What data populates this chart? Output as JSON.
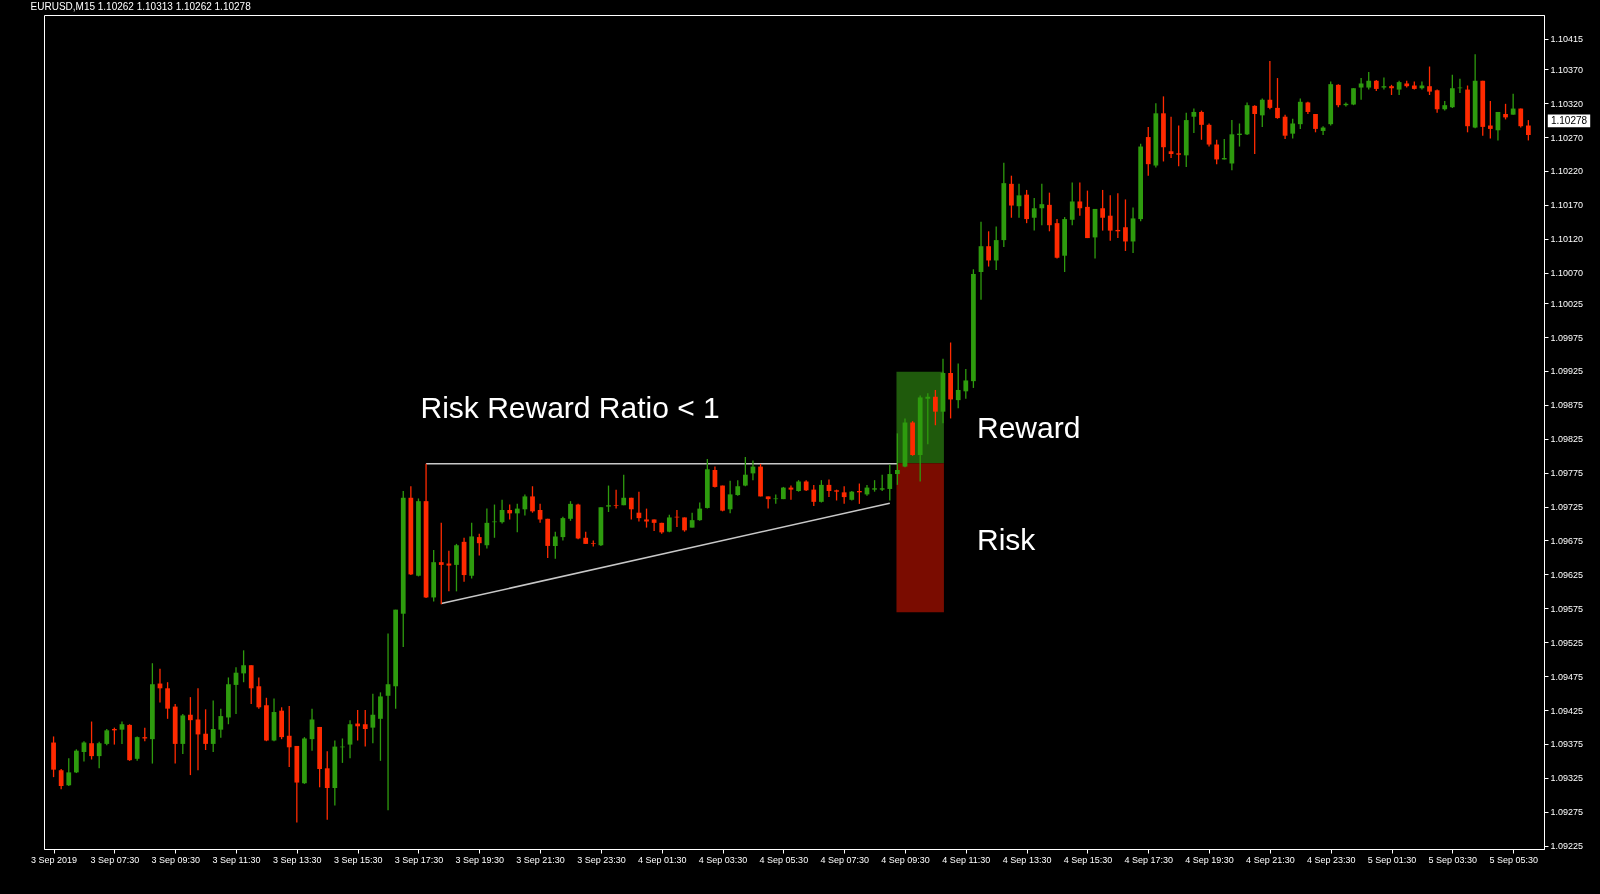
{
  "chart_data": {
    "type": "candlestick",
    "title": "EURUSD,M15  1.10262 1.10313 1.10262 1.10278",
    "x": [
      "2019-09-03T05:30",
      "2019-09-03T05:45",
      "2019-09-03T06:00",
      "2019-09-03T06:15",
      "2019-09-03T06:30",
      "2019-09-03T06:45",
      "2019-09-03T07:00",
      "2019-09-03T07:15",
      "2019-09-03T07:30",
      "2019-09-03T07:45",
      "2019-09-03T08:00",
      "2019-09-03T08:15",
      "2019-09-03T08:30",
      "2019-09-03T08:45",
      "2019-09-03T09:00",
      "2019-09-03T09:15",
      "2019-09-03T09:30",
      "2019-09-03T09:45",
      "2019-09-03T10:00",
      "2019-09-03T10:15",
      "2019-09-03T10:30",
      "2019-09-03T10:45",
      "2019-09-03T11:00",
      "2019-09-03T11:15",
      "2019-09-03T11:30",
      "2019-09-03T11:45",
      "2019-09-03T12:00",
      "2019-09-03T12:15",
      "2019-09-03T12:30",
      "2019-09-03T12:45",
      "2019-09-03T13:00",
      "2019-09-03T13:15",
      "2019-09-03T13:30",
      "2019-09-03T13:45",
      "2019-09-03T14:00",
      "2019-09-03T14:15",
      "2019-09-03T14:30",
      "2019-09-03T14:45",
      "2019-09-03T15:00",
      "2019-09-03T15:15",
      "2019-09-03T15:30",
      "2019-09-03T15:45",
      "2019-09-03T16:00",
      "2019-09-03T16:15",
      "2019-09-03T16:30",
      "2019-09-03T16:45",
      "2019-09-03T17:00",
      "2019-09-03T17:15",
      "2019-09-03T17:30",
      "2019-09-03T17:45",
      "2019-09-03T18:00",
      "2019-09-03T18:15",
      "2019-09-03T18:30",
      "2019-09-03T18:45",
      "2019-09-03T19:00",
      "2019-09-03T19:15",
      "2019-09-03T19:30",
      "2019-09-03T19:45",
      "2019-09-03T20:00",
      "2019-09-03T20:15",
      "2019-09-03T20:30",
      "2019-09-03T20:45",
      "2019-09-03T21:00",
      "2019-09-03T21:15",
      "2019-09-03T21:30",
      "2019-09-03T21:45",
      "2019-09-03T22:00",
      "2019-09-03T22:15",
      "2019-09-03T22:30",
      "2019-09-03T22:45",
      "2019-09-03T23:00",
      "2019-09-03T23:15",
      "2019-09-03T23:30",
      "2019-09-03T23:45",
      "2019-09-04T00:00",
      "2019-09-04T00:15",
      "2019-09-04T00:30",
      "2019-09-04T00:45",
      "2019-09-04T01:00",
      "2019-09-04T01:15",
      "2019-09-04T01:30",
      "2019-09-04T01:45",
      "2019-09-04T02:00",
      "2019-09-04T02:15",
      "2019-09-04T02:30",
      "2019-09-04T02:45",
      "2019-09-04T03:00",
      "2019-09-04T03:15",
      "2019-09-04T03:30",
      "2019-09-04T03:45",
      "2019-09-04T04:00",
      "2019-09-04T04:15",
      "2019-09-04T04:30",
      "2019-09-04T04:45",
      "2019-09-04T05:00",
      "2019-09-04T05:15",
      "2019-09-04T05:30",
      "2019-09-04T05:45",
      "2019-09-04T06:00",
      "2019-09-04T06:15",
      "2019-09-04T06:30",
      "2019-09-04T06:45",
      "2019-09-04T07:00",
      "2019-09-04T07:15",
      "2019-09-04T07:30",
      "2019-09-04T07:45",
      "2019-09-04T08:00",
      "2019-09-04T08:15",
      "2019-09-04T08:30",
      "2019-09-04T08:45",
      "2019-09-04T09:00",
      "2019-09-04T09:15",
      "2019-09-04T09:30",
      "2019-09-04T09:45",
      "2019-09-04T10:00",
      "2019-09-04T10:15",
      "2019-09-04T10:30",
      "2019-09-04T10:45",
      "2019-09-04T11:00",
      "2019-09-04T11:15",
      "2019-09-04T11:30",
      "2019-09-04T11:45",
      "2019-09-04T12:00",
      "2019-09-04T12:15",
      "2019-09-04T12:30",
      "2019-09-04T12:45",
      "2019-09-04T13:00",
      "2019-09-04T13:15",
      "2019-09-04T13:30",
      "2019-09-04T13:45",
      "2019-09-04T14:00",
      "2019-09-04T14:15",
      "2019-09-04T14:30",
      "2019-09-04T14:45",
      "2019-09-04T15:00",
      "2019-09-04T15:15",
      "2019-09-04T15:30",
      "2019-09-04T15:45",
      "2019-09-04T16:00",
      "2019-09-04T16:15",
      "2019-09-04T16:30",
      "2019-09-04T16:45",
      "2019-09-04T17:00",
      "2019-09-04T17:15",
      "2019-09-04T17:30",
      "2019-09-04T17:45",
      "2019-09-04T18:00",
      "2019-09-04T18:15",
      "2019-09-04T18:30",
      "2019-09-04T18:45",
      "2019-09-04T19:00",
      "2019-09-04T19:15",
      "2019-09-04T19:30",
      "2019-09-04T19:45",
      "2019-09-04T20:00",
      "2019-09-04T20:15",
      "2019-09-04T20:30",
      "2019-09-04T20:45",
      "2019-09-04T21:00",
      "2019-09-04T21:15",
      "2019-09-04T21:30",
      "2019-09-04T21:45",
      "2019-09-04T22:00",
      "2019-09-04T22:15",
      "2019-09-04T22:30",
      "2019-09-04T22:45",
      "2019-09-04T23:00",
      "2019-09-04T23:15",
      "2019-09-04T23:30",
      "2019-09-04T23:45",
      "2019-09-05T00:00",
      "2019-09-05T00:15",
      "2019-09-05T00:30",
      "2019-09-05T00:45",
      "2019-09-05T01:00",
      "2019-09-05T01:15",
      "2019-09-05T01:30",
      "2019-09-05T01:45",
      "2019-09-05T02:00",
      "2019-09-05T02:15",
      "2019-09-05T02:30",
      "2019-09-05T02:45",
      "2019-09-05T03:00",
      "2019-09-05T03:15",
      "2019-09-05T03:30",
      "2019-09-05T03:45",
      "2019-09-05T04:00",
      "2019-09-05T04:15",
      "2019-09-05T04:30",
      "2019-09-05T04:45",
      "2019-09-05T05:00",
      "2019-09-05T05:15",
      "2019-09-05T05:30",
      "2019-09-05T05:45",
      "2019-09-05T06:00"
    ],
    "ohlc": [
      [
        1.09377,
        1.09386,
        1.09326,
        1.09337
      ],
      [
        1.09336,
        1.09338,
        1.09308,
        1.09313
      ],
      [
        1.09314,
        1.09354,
        1.09313,
        1.09333
      ],
      [
        1.09333,
        1.09367,
        1.09332,
        1.09365
      ],
      [
        1.09363,
        1.09379,
        1.09349,
        1.09377
      ],
      [
        1.09376,
        1.09408,
        1.09352,
        1.09357
      ],
      [
        1.09357,
        1.09378,
        1.09339,
        1.09376
      ],
      [
        1.09375,
        1.09397,
        1.09373,
        1.09395
      ],
      [
        1.09397,
        1.09399,
        1.09374,
        1.09395
      ],
      [
        1.09396,
        1.09408,
        1.09375,
        1.09404
      ],
      [
        1.09403,
        1.09404,
        1.0935,
        1.09351
      ],
      [
        1.09353,
        1.09386,
        1.0935,
        1.09385
      ],
      [
        1.09385,
        1.09399,
        1.09379,
        1.09383
      ],
      [
        1.09382,
        1.09494,
        1.09346,
        1.09463
      ],
      [
        1.09464,
        1.09486,
        1.09436,
        1.09457
      ],
      [
        1.09457,
        1.09466,
        1.09412,
        1.09427
      ],
      [
        1.0943,
        1.09434,
        1.09346,
        1.09375
      ],
      [
        1.09375,
        1.09419,
        1.0936,
        1.09417
      ],
      [
        1.09418,
        1.09444,
        1.09329,
        1.0941
      ],
      [
        1.09411,
        1.09457,
        1.09336,
        1.09389
      ],
      [
        1.0939,
        1.09426,
        1.09366,
        1.09375
      ],
      [
        1.09375,
        1.09439,
        1.09363,
        1.09397
      ],
      [
        1.09396,
        1.09427,
        1.09384,
        1.09416
      ],
      [
        1.09414,
        1.09473,
        1.09404,
        1.09463
      ],
      [
        1.09462,
        1.09488,
        1.09419,
        1.0948
      ],
      [
        1.09479,
        1.09513,
        1.09466,
        1.09491
      ],
      [
        1.09491,
        1.09491,
        1.09434,
        1.09457
      ],
      [
        1.0946,
        1.09473,
        1.09427,
        1.09429
      ],
      [
        1.09432,
        1.09443,
        1.09379,
        1.0938
      ],
      [
        1.0938,
        1.09442,
        1.09379,
        1.09422
      ],
      [
        1.09424,
        1.09429,
        1.09382,
        1.09385
      ],
      [
        1.09387,
        1.09431,
        1.09341,
        1.0937
      ],
      [
        1.09372,
        1.09372,
        1.09259,
        1.09318
      ],
      [
        1.09317,
        1.09385,
        1.09316,
        1.09383
      ],
      [
        1.09382,
        1.09427,
        1.09365,
        1.09411
      ],
      [
        1.094,
        1.094,
        1.09311,
        1.09338
      ],
      [
        1.09339,
        1.09364,
        1.09263,
        1.0931
      ],
      [
        1.0931,
        1.0938,
        1.09284,
        1.09371
      ],
      [
        1.0937,
        1.09383,
        1.09347,
        1.09371
      ],
      [
        1.09374,
        1.0941,
        1.09354,
        1.09404
      ],
      [
        1.09405,
        1.09425,
        1.0938,
        1.09401
      ],
      [
        1.09404,
        1.09425,
        1.09371,
        1.09397
      ],
      [
        1.09399,
        1.09449,
        1.09376,
        1.09418
      ],
      [
        1.09412,
        1.09451,
        1.0935,
        1.09445
      ],
      [
        1.09446,
        1.09538,
        1.09277,
        1.09463
      ],
      [
        1.0946,
        1.09573,
        1.09427,
        1.09573
      ],
      [
        1.09567,
        1.09748,
        1.09518,
        1.09738
      ],
      [
        1.09738,
        1.09755,
        1.09624,
        1.09625
      ],
      [
        1.09623,
        1.09737,
        1.09622,
        1.09733
      ],
      [
        1.09733,
        1.09788,
        1.0959,
        1.09591
      ],
      [
        1.09591,
        1.09661,
        1.09585,
        1.09643
      ],
      [
        1.09643,
        1.09701,
        1.09581,
        1.09639
      ],
      [
        1.09641,
        1.0966,
        1.096,
        1.09638
      ],
      [
        1.09639,
        1.0967,
        1.096,
        1.09668
      ],
      [
        1.09673,
        1.09679,
        1.09614,
        1.09624
      ],
      [
        1.09623,
        1.09701,
        1.09619,
        1.09681
      ],
      [
        1.0968,
        1.09685,
        1.09653,
        1.09671
      ],
      [
        1.09668,
        1.09722,
        1.09663,
        1.09701
      ],
      [
        1.09702,
        1.09728,
        1.09679,
        1.09703
      ],
      [
        1.09702,
        1.09735,
        1.097,
        1.0972
      ],
      [
        1.0972,
        1.09728,
        1.09706,
        1.09715
      ],
      [
        1.09715,
        1.09729,
        1.09687,
        1.09722
      ],
      [
        1.09721,
        1.09743,
        1.09712,
        1.0974
      ],
      [
        1.0974,
        1.09755,
        1.09716,
        1.09718
      ],
      [
        1.0972,
        1.09729,
        1.09701,
        1.09706
      ],
      [
        1.09707,
        1.09707,
        1.09649,
        1.09667
      ],
      [
        1.09667,
        1.09688,
        1.09648,
        1.09681
      ],
      [
        1.0968,
        1.0971,
        1.09675,
        1.09708
      ],
      [
        1.09707,
        1.09733,
        1.09704,
        1.09729
      ],
      [
        1.09728,
        1.09729,
        1.09677,
        1.09678
      ],
      [
        1.09679,
        1.09688,
        1.0967,
        1.0967
      ],
      [
        1.09671,
        1.09675,
        1.09666,
        1.0967
      ],
      [
        1.09668,
        1.09724,
        1.09667,
        1.09724
      ],
      [
        1.09725,
        1.09756,
        1.09717,
        1.09727
      ],
      [
        1.09727,
        1.0975,
        1.09722,
        1.09726
      ],
      [
        1.09727,
        1.09772,
        1.09727,
        1.09738
      ],
      [
        1.09738,
        1.09738,
        1.09706,
        1.09721
      ],
      [
        1.09716,
        1.09747,
        1.09703,
        1.09708
      ],
      [
        1.09706,
        1.09722,
        1.09694,
        1.09703
      ],
      [
        1.09706,
        1.09706,
        1.09689,
        1.09701
      ],
      [
        1.09701,
        1.09701,
        1.09685,
        1.09687
      ],
      [
        1.09688,
        1.09713,
        1.09687,
        1.09709
      ],
      [
        1.0971,
        1.0972,
        1.09695,
        1.09709
      ],
      [
        1.09709,
        1.09709,
        1.09688,
        1.0969
      ],
      [
        1.09694,
        1.09716,
        1.09694,
        1.09705
      ],
      [
        1.09705,
        1.09731,
        1.09704,
        1.09722
      ],
      [
        1.09723,
        1.09795,
        1.09722,
        1.0978
      ],
      [
        1.09779,
        1.09784,
        1.09753,
        1.09754
      ],
      [
        1.09756,
        1.09756,
        1.09718,
        1.09719
      ],
      [
        1.09721,
        1.09763,
        1.09715,
        1.09743
      ],
      [
        1.09742,
        1.09764,
        1.09741,
        1.09755
      ],
      [
        1.09756,
        1.09798,
        1.09755,
        1.09772
      ],
      [
        1.09774,
        1.09793,
        1.09764,
        1.09784
      ],
      [
        1.09784,
        1.09788,
        1.0974,
        1.0974
      ],
      [
        1.0974,
        1.0974,
        1.09722,
        1.09736
      ],
      [
        1.09736,
        1.09743,
        1.09729,
        1.09737
      ],
      [
        1.09736,
        1.09754,
        1.09736,
        1.09753
      ],
      [
        1.09753,
        1.09756,
        1.09735,
        1.0975
      ],
      [
        1.09748,
        1.09764,
        1.09747,
        1.09762
      ],
      [
        1.09762,
        1.09764,
        1.09748,
        1.09749
      ],
      [
        1.0975,
        1.09757,
        1.09726,
        1.09732
      ],
      [
        1.09732,
        1.09764,
        1.09731,
        1.09757
      ],
      [
        1.09757,
        1.09765,
        1.09739,
        1.09748
      ],
      [
        1.09749,
        1.0975,
        1.09734,
        1.09747
      ],
      [
        1.09746,
        1.09755,
        1.09729,
        1.09739
      ],
      [
        1.09735,
        1.09748,
        1.09734,
        1.09747
      ],
      [
        1.09748,
        1.09759,
        1.09729,
        1.09746
      ],
      [
        1.09743,
        1.09757,
        1.09741,
        1.09753
      ],
      [
        1.0975,
        1.09764,
        1.09747,
        1.09752
      ],
      [
        1.0975,
        1.09772,
        1.09748,
        1.09752
      ],
      [
        1.09751,
        1.09787,
        1.09734,
        1.09773
      ],
      [
        1.09773,
        1.09833,
        1.09757,
        1.09779
      ],
      [
        1.09784,
        1.09855,
        1.09783,
        1.09849
      ],
      [
        1.09849,
        1.09851,
        1.098,
        1.09801
      ],
      [
        1.09801,
        1.09889,
        1.09762,
        1.09886
      ],
      [
        1.09884,
        1.09892,
        1.09817,
        1.09887
      ],
      [
        1.09887,
        1.09897,
        1.09845,
        1.09865
      ],
      [
        1.09865,
        1.09943,
        1.09848,
        1.09922
      ],
      [
        1.09922,
        1.09967,
        1.09855,
        1.09883
      ],
      [
        1.09882,
        1.09936,
        1.0987,
        1.09897
      ],
      [
        1.09895,
        1.09928,
        1.09884,
        1.09911
      ],
      [
        1.0991,
        1.10075,
        1.099,
        1.10068
      ],
      [
        1.10071,
        1.10145,
        1.1003,
        1.10109
      ],
      [
        1.10109,
        1.10131,
        1.10079,
        1.10088
      ],
      [
        1.10088,
        1.10138,
        1.10074,
        1.10118
      ],
      [
        1.10118,
        1.10232,
        1.10108,
        1.10202
      ],
      [
        1.10201,
        1.10213,
        1.10151,
        1.10169
      ],
      [
        1.10168,
        1.10201,
        1.10151,
        1.10184
      ],
      [
        1.10185,
        1.10192,
        1.10143,
        1.10149
      ],
      [
        1.10151,
        1.1018,
        1.10132,
        1.10165
      ],
      [
        1.10165,
        1.10201,
        1.1014,
        1.10171
      ],
      [
        1.1017,
        1.10188,
        1.10131,
        1.1014
      ],
      [
        1.10143,
        1.10149,
        1.10091,
        1.10092
      ],
      [
        1.10095,
        1.10152,
        1.10071,
        1.10149
      ],
      [
        1.10148,
        1.10203,
        1.1014,
        1.10175
      ],
      [
        1.10175,
        1.10203,
        1.10154,
        1.10165
      ],
      [
        1.10167,
        1.10191,
        1.10121,
        1.10121
      ],
      [
        1.10122,
        1.10164,
        1.10091,
        1.10164
      ],
      [
        1.10165,
        1.10192,
        1.10132,
        1.10151
      ],
      [
        1.10154,
        1.10184,
        1.10117,
        1.10132
      ],
      [
        1.10133,
        1.10187,
        1.10121,
        1.10131
      ],
      [
        1.10137,
        1.10178,
        1.10102,
        1.10116
      ],
      [
        1.10116,
        1.10166,
        1.10099,
        1.1015
      ],
      [
        1.10149,
        1.1026,
        1.10146,
        1.10256
      ],
      [
        1.1027,
        1.10285,
        1.10213,
        1.1023
      ],
      [
        1.10228,
        1.1032,
        1.10225,
        1.10305
      ],
      [
        1.10305,
        1.1033,
        1.10234,
        1.10255
      ],
      [
        1.10249,
        1.103,
        1.10239,
        1.10245
      ],
      [
        1.10246,
        1.10287,
        1.10227,
        1.10244
      ],
      [
        1.10243,
        1.10306,
        1.10226,
        1.10295
      ],
      [
        1.103,
        1.10312,
        1.10276,
        1.10307
      ],
      [
        1.10307,
        1.10309,
        1.10266,
        1.10288
      ],
      [
        1.10288,
        1.1029,
        1.10256,
        1.10259
      ],
      [
        1.10259,
        1.10266,
        1.1023,
        1.10237
      ],
      [
        1.10237,
        1.10267,
        1.10237,
        1.10239
      ],
      [
        1.10231,
        1.10295,
        1.10221,
        1.10274
      ],
      [
        1.10273,
        1.1029,
        1.10256,
        1.10275
      ],
      [
        1.10274,
        1.10321,
        1.10273,
        1.10317
      ],
      [
        1.10316,
        1.10317,
        1.10245,
        1.10304
      ],
      [
        1.10302,
        1.10327,
        1.10285,
        1.10325
      ],
      [
        1.10325,
        1.10382,
        1.10311,
        1.10313
      ],
      [
        1.10313,
        1.10357,
        1.10297,
        1.10298
      ],
      [
        1.103,
        1.10303,
        1.10267,
        1.10272
      ],
      [
        1.10275,
        1.10297,
        1.10268,
        1.1029
      ],
      [
        1.10289,
        1.10327,
        1.10282,
        1.10322
      ],
      [
        1.10321,
        1.10322,
        1.10304,
        1.10307
      ],
      [
        1.10304,
        1.10304,
        1.10277,
        1.10282
      ],
      [
        1.10279,
        1.10286,
        1.10273,
        1.10284
      ],
      [
        1.10289,
        1.10352,
        1.10287,
        1.10348
      ],
      [
        1.10347,
        1.10348,
        1.10314,
        1.10317
      ],
      [
        1.10317,
        1.10321,
        1.10315,
        1.10319
      ],
      [
        1.10318,
        1.10342,
        1.10317,
        1.10342
      ],
      [
        1.10343,
        1.10357,
        1.10325,
        1.10349
      ],
      [
        1.10343,
        1.10366,
        1.1034,
        1.10353
      ],
      [
        1.10353,
        1.10354,
        1.10338,
        1.10341
      ],
      [
        1.10343,
        1.10358,
        1.1034,
        1.10345
      ],
      [
        1.10345,
        1.10347,
        1.10332,
        1.10342
      ],
      [
        1.1034,
        1.10353,
        1.10332,
        1.10351
      ],
      [
        1.10349,
        1.10353,
        1.10343,
        1.10345
      ],
      [
        1.10346,
        1.10352,
        1.1034,
        1.10341
      ],
      [
        1.10342,
        1.10352,
        1.1034,
        1.10346
      ],
      [
        1.10345,
        1.10374,
        1.10332,
        1.10337
      ],
      [
        1.10339,
        1.1034,
        1.10306,
        1.10311
      ],
      [
        1.10311,
        1.10323,
        1.10309,
        1.10317
      ],
      [
        1.10314,
        1.10362,
        1.10313,
        1.10342
      ],
      [
        1.10342,
        1.10356,
        1.10335,
        1.10343
      ],
      [
        1.1034,
        1.10346,
        1.10277,
        1.10286
      ],
      [
        1.10284,
        1.10392,
        1.10283,
        1.10353
      ],
      [
        1.10353,
        1.10353,
        1.10272,
        1.10285
      ],
      [
        1.10287,
        1.10323,
        1.10268,
        1.10282
      ],
      [
        1.1028,
        1.10307,
        1.10265,
        1.10307
      ],
      [
        1.10304,
        1.10319,
        1.10296,
        1.10299
      ],
      [
        1.10303,
        1.10334,
        1.10303,
        1.10312
      ],
      [
        1.10312,
        1.10312,
        1.10284,
        1.10286
      ],
      [
        1.10287,
        1.10295,
        1.10265,
        1.10273
      ]
    ],
    "colors": [
      "#ff2a00",
      "#ff2a00",
      "#2e9b0e",
      "#2e9b0e",
      "#2e9b0e",
      "#ff2a00",
      "#2e9b0e",
      "#2e9b0e",
      "#ff2a00",
      "#2e9b0e",
      "#ff2a00",
      "#2e9b0e",
      "#ff2a00",
      "#2e9b0e",
      "#ff2a00",
      "#ff2a00",
      "#ff2a00",
      "#2e9b0e",
      "#ff2a00",
      "#ff2a00",
      "#ff2a00",
      "#2e9b0e",
      "#2e9b0e",
      "#2e9b0e",
      "#2e9b0e",
      "#2e9b0e",
      "#ff2a00",
      "#ff2a00",
      "#ff2a00",
      "#2e9b0e",
      "#ff2a00",
      "#ff2a00",
      "#ff2a00",
      "#2e9b0e",
      "#2e9b0e",
      "#ff2a00",
      "#ff2a00",
      "#2e9b0e",
      "#2e9b0e",
      "#2e9b0e",
      "#ff2a00",
      "#ff2a00",
      "#2e9b0e",
      "#2e9b0e",
      "#2e9b0e",
      "#2e9b0e",
      "#2e9b0e",
      "#ff2a00",
      "#2e9b0e",
      "#ff2a00",
      "#2e9b0e",
      "#ff2a00",
      "#ff2a00",
      "#2e9b0e",
      "#ff2a00",
      "#2e9b0e",
      "#ff2a00",
      "#2e9b0e",
      "#2e9b0e",
      "#2e9b0e",
      "#ff2a00",
      "#2e9b0e",
      "#2e9b0e",
      "#ff2a00",
      "#ff2a00",
      "#ff2a00",
      "#2e9b0e",
      "#2e9b0e",
      "#2e9b0e",
      "#ff2a00",
      "#ff2a00",
      "#ff2a00",
      "#2e9b0e",
      "#2e9b0e",
      "#ff2a00",
      "#2e9b0e",
      "#ff2a00",
      "#ff2a00",
      "#ff2a00",
      "#ff2a00",
      "#ff2a00",
      "#2e9b0e",
      "#ff2a00",
      "#ff2a00",
      "#2e9b0e",
      "#2e9b0e",
      "#2e9b0e",
      "#ff2a00",
      "#ff2a00",
      "#2e9b0e",
      "#2e9b0e",
      "#2e9b0e",
      "#2e9b0e",
      "#ff2a00",
      "#ff2a00",
      "#2e9b0e",
      "#2e9b0e",
      "#ff2a00",
      "#2e9b0e",
      "#ff2a00",
      "#ff2a00",
      "#2e9b0e",
      "#ff2a00",
      "#ff2a00",
      "#ff2a00",
      "#2e9b0e",
      "#ff2a00",
      "#2e9b0e",
      "#2e9b0e",
      "#2e9b0e",
      "#2e9b0e",
      "#2e9b0e",
      "#2e9b0e",
      "#ff2a00",
      "#2e9b0e",
      "#2e9b0e",
      "#ff2a00",
      "#2e9b0e",
      "#ff2a00",
      "#2e9b0e",
      "#2e9b0e",
      "#2e9b0e",
      "#2e9b0e",
      "#ff2a00",
      "#2e9b0e",
      "#2e9b0e",
      "#ff2a00",
      "#2e9b0e",
      "#ff2a00",
      "#2e9b0e",
      "#2e9b0e",
      "#ff2a00",
      "#ff2a00",
      "#2e9b0e",
      "#2e9b0e",
      "#ff2a00",
      "#ff2a00",
      "#2e9b0e",
      "#ff2a00",
      "#ff2a00",
      "#ff2a00",
      "#ff2a00",
      "#2e9b0e",
      "#2e9b0e",
      "#ff2a00",
      "#2e9b0e",
      "#ff2a00",
      "#ff2a00",
      "#ff2a00",
      "#2e9b0e",
      "#2e9b0e",
      "#ff2a00",
      "#ff2a00",
      "#ff2a00",
      "#2e9b0e",
      "#2e9b0e",
      "#2e9b0e",
      "#2e9b0e",
      "#ff2a00",
      "#2e9b0e",
      "#ff2a00",
      "#ff2a00",
      "#ff2a00",
      "#2e9b0e",
      "#2e9b0e",
      "#ff2a00",
      "#ff2a00",
      "#2e9b0e",
      "#2e9b0e",
      "#ff2a00",
      "#2e9b0e",
      "#2e9b0e",
      "#2e9b0e",
      "#2e9b0e",
      "#ff2a00",
      "#2e9b0e",
      "#ff2a00",
      "#2e9b0e",
      "#ff2a00",
      "#ff2a00",
      "#2e9b0e",
      "#ff2a00",
      "#ff2a00",
      "#2e9b0e",
      "#2e9b0e",
      "#2e9b0e",
      "#ff2a00",
      "#2e9b0e",
      "#ff2a00",
      "#ff2a00",
      "#2e9b0e",
      "#ff2a00",
      "#2e9b0e",
      "#ff2a00",
      "#ff2a00"
    ],
    "series": [
      {
        "type": "bar",
        "x": [
          "2019-09-04T10:00",
          "2019-09-04T10:00"
        ],
        "base": [
          1.09789,
          1.09569
        ],
        "values": [
          0.00135,
          0.0022
        ],
        "colors": [
          "#1f5a0c",
          "#7a0c00"
        ]
      },
      {
        "type": "line",
        "x": [
          "2019-09-03T17:45",
          "2019-09-04T09:15"
        ],
        "values": [
          1.09788,
          1.09788
        ],
        "color": "#c8c8c8"
      },
      {
        "type": "line",
        "x": [
          "2019-09-03T18:15",
          "2019-09-04T09:00"
        ],
        "values": [
          1.09582,
          1.0973
        ],
        "color": "#c8c8c8"
      }
    ],
    "annotations": [
      "Risk Reward Ratio < 1",
      "Reward",
      "Risk",
      "1.10278"
    ],
    "xlim": [
      "2019-09-03T05:21",
      "2019-09-05T06:21"
    ],
    "xticks": [
      {
        "value": "2019-09-03T05:30",
        "label": "3 Sep 2019"
      },
      {
        "value": "2019-09-03T07:30",
        "label": "3 Sep 07:30"
      },
      {
        "value": "2019-09-03T09:30",
        "label": "3 Sep 09:30"
      },
      {
        "value": "2019-09-03T11:30",
        "label": "3 Sep 11:30"
      },
      {
        "value": "2019-09-03T13:30",
        "label": "3 Sep 13:30"
      },
      {
        "value": "2019-09-03T15:30",
        "label": "3 Sep 15:30"
      },
      {
        "value": "2019-09-03T17:30",
        "label": "3 Sep 17:30"
      },
      {
        "value": "2019-09-03T19:30",
        "label": "3 Sep 19:30"
      },
      {
        "value": "2019-09-03T21:30",
        "label": "3 Sep 21:30"
      },
      {
        "value": "2019-09-03T23:30",
        "label": "3 Sep 23:30"
      },
      {
        "value": "2019-09-04T01:30",
        "label": "4 Sep 01:30"
      },
      {
        "value": "2019-09-04T03:30",
        "label": "4 Sep 03:30"
      },
      {
        "value": "2019-09-04T05:30",
        "label": "4 Sep 05:30"
      },
      {
        "value": "2019-09-04T07:30",
        "label": "4 Sep 07:30"
      },
      {
        "value": "2019-09-04T09:30",
        "label": "4 Sep 09:30"
      },
      {
        "value": "2019-09-04T11:30",
        "label": "4 Sep 11:30"
      },
      {
        "value": "2019-09-04T13:30",
        "label": "4 Sep 13:30"
      },
      {
        "value": "2019-09-04T15:30",
        "label": "4 Sep 15:30"
      },
      {
        "value": "2019-09-04T17:30",
        "label": "4 Sep 17:30"
      },
      {
        "value": "2019-09-04T19:30",
        "label": "4 Sep 19:30"
      },
      {
        "value": "2019-09-04T21:30",
        "label": "4 Sep 21:30"
      },
      {
        "value": "2019-09-04T23:30",
        "label": "4 Sep 23:30"
      },
      {
        "value": "2019-09-05T01:30",
        "label": "5 Sep 01:30"
      },
      {
        "value": "2019-09-05T03:30",
        "label": "5 Sep 03:30"
      },
      {
        "value": "2019-09-05T05:30",
        "label": "5 Sep 05:30"
      }
    ],
    "ylim": [
      1.0922,
      1.1045
    ],
    "yticks": [
      1.10415,
      {
        "value": 1.1037,
        "label": "1.10370"
      },
      {
        "value": 1.1032,
        "label": "1.10320"
      },
      {
        "value": 1.1027,
        "label": "1.10270"
      },
      {
        "value": 1.1022,
        "label": "1.10220"
      },
      {
        "value": 1.1017,
        "label": "1.10170"
      },
      {
        "value": 1.1012,
        "label": "1.10120"
      },
      {
        "value": 1.1007,
        "label": "1.10070"
      },
      1.10025,
      1.09975,
      1.09925,
      1.09875,
      1.09825,
      1.09775,
      1.09725,
      1.09675,
      1.09625,
      1.09575,
      1.09525,
      1.09475,
      1.09425,
      1.09375,
      1.09325,
      1.09275,
      1.09225
    ]
  }
}
